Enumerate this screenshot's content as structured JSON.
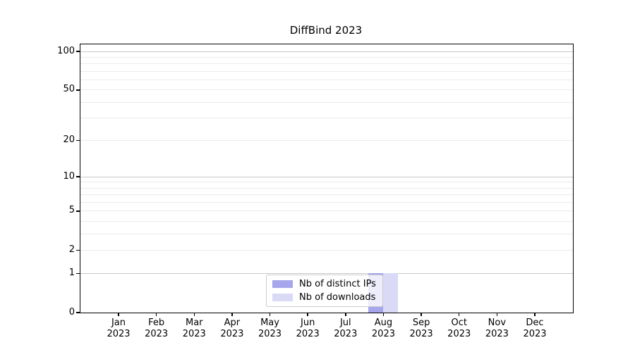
{
  "figure": {
    "title": "DiffBind 2023"
  },
  "chart_data": {
    "type": "bar",
    "title": "DiffBind 2023",
    "x_months": [
      "Jan",
      "Feb",
      "Mar",
      "Apr",
      "May",
      "Jun",
      "Jul",
      "Aug",
      "Sep",
      "Oct",
      "Nov",
      "Dec"
    ],
    "x_year": "2023",
    "y_scale": "log1p",
    "y_axis_tick_values": [
      0,
      1,
      2,
      5,
      10,
      20,
      50,
      100
    ],
    "y_major_grid_values": [
      1,
      10,
      100
    ],
    "y_minor_grid_values": [
      2,
      3,
      4,
      5,
      6,
      7,
      8,
      9,
      20,
      30,
      40,
      50,
      60,
      70,
      80,
      90
    ],
    "y_max": 100,
    "grid": true,
    "legend_position": "inside-bottom-center",
    "series": [
      {
        "name": "Nb of distinct IPs",
        "color": "#a6a6ec",
        "values": [
          0,
          0,
          0,
          0,
          0,
          0,
          0,
          1,
          0,
          0,
          0,
          0
        ]
      },
      {
        "name": "Nb of downloads",
        "color": "#dadaf7",
        "values": [
          0,
          0,
          0,
          0,
          0,
          0,
          0,
          1,
          0,
          0,
          0,
          0
        ]
      }
    ],
    "colors": {
      "major_grid": "#c8c8c8",
      "minor_grid": "#ebebeb",
      "axis": "#000000"
    }
  }
}
